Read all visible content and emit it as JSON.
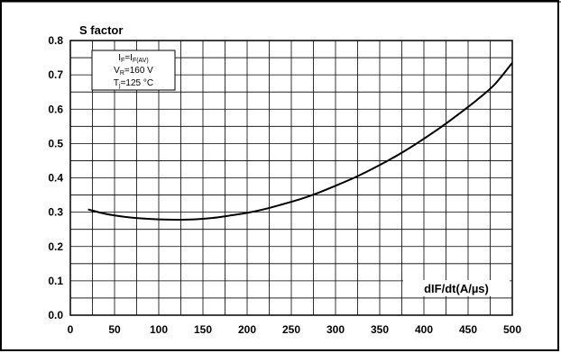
{
  "chart_data": {
    "type": "line",
    "title": "S factor",
    "xlabel": "dIF/dt(A/µs)",
    "ylabel": "",
    "xlim": [
      0,
      500
    ],
    "ylim": [
      0.0,
      0.8
    ],
    "xticks": [
      "0",
      "50",
      "100",
      "150",
      "200",
      "250",
      "300",
      "350",
      "400",
      "450",
      "500"
    ],
    "yticks": [
      "0.0",
      "0.1",
      "0.2",
      "0.3",
      "0.4",
      "0.5",
      "0.6",
      "0.7",
      "0.8"
    ],
    "grid": true,
    "conditions": [
      {
        "main": "I",
        "sub": "F",
        "rest": "=I",
        "sub2": "F(AV)"
      },
      {
        "main": "V",
        "sub": "R",
        "rest": "=160 V"
      },
      {
        "main": "T",
        "sub": "j",
        "rest": "=125 °C"
      }
    ],
    "series": [
      {
        "x": [
          20,
          40,
          60,
          80,
          100,
          120,
          140,
          160,
          180,
          200,
          220,
          240,
          260,
          280,
          300,
          320,
          340,
          360,
          380,
          400,
          420,
          440,
          460,
          480,
          500
        ],
        "values": [
          0.308,
          0.295,
          0.287,
          0.282,
          0.279,
          0.278,
          0.279,
          0.283,
          0.29,
          0.298,
          0.309,
          0.323,
          0.338,
          0.356,
          0.377,
          0.399,
          0.424,
          0.451,
          0.481,
          0.514,
          0.549,
          0.587,
          0.627,
          0.672,
          0.735
        ]
      }
    ]
  }
}
